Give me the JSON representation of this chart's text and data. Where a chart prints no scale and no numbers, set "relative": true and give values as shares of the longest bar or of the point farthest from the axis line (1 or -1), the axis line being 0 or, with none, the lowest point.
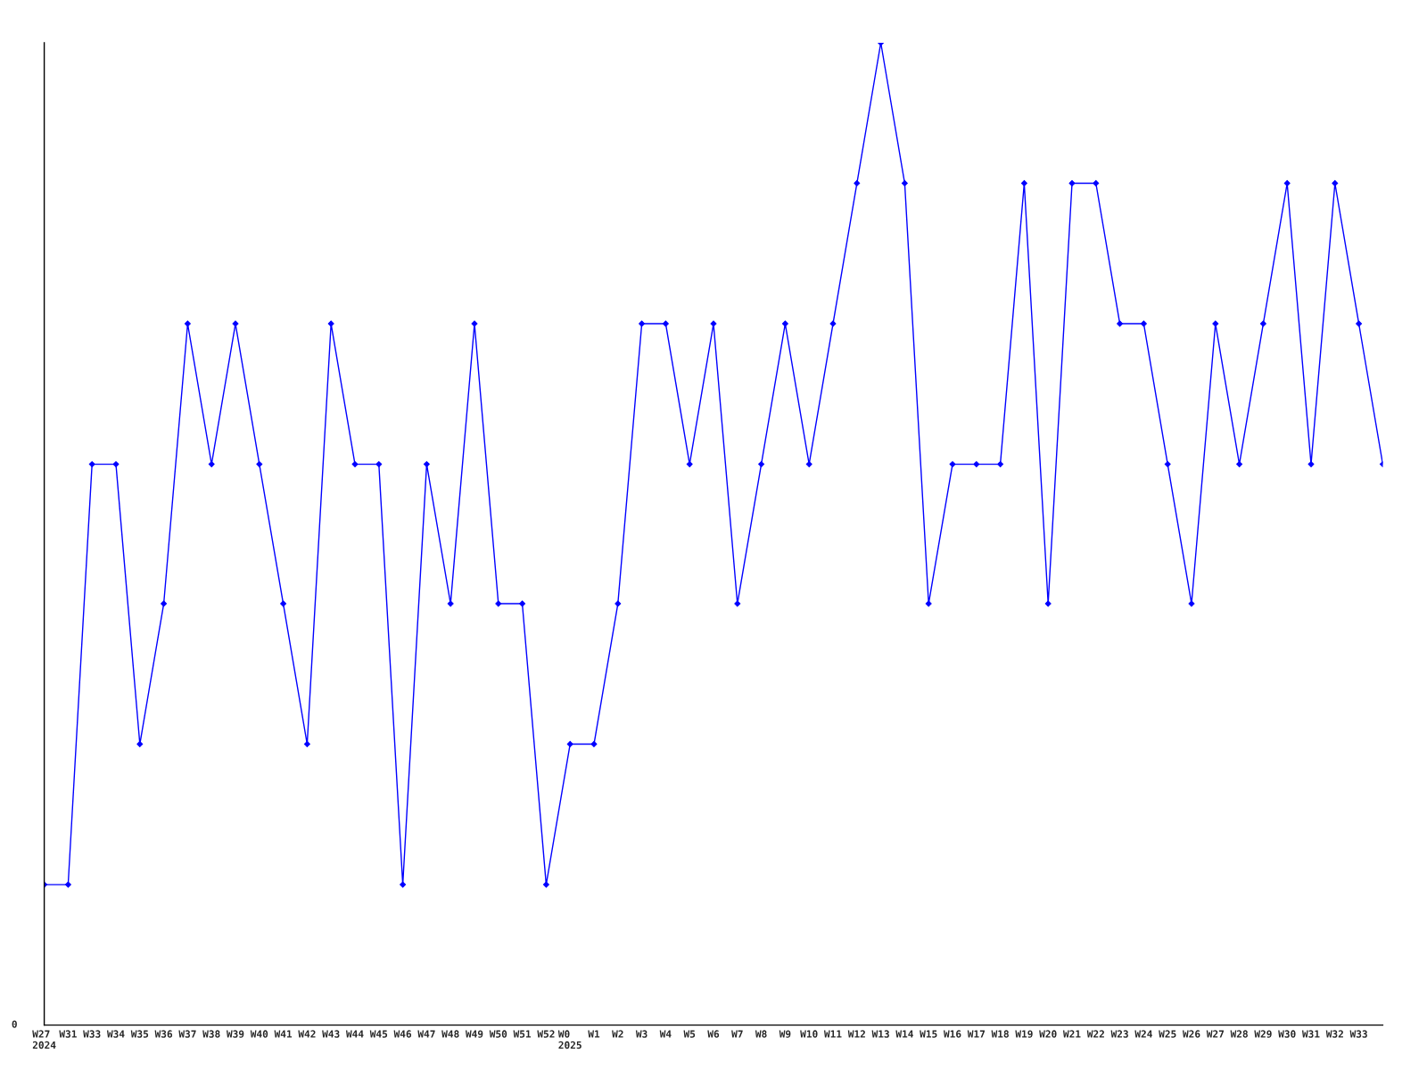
{
  "chart_data": {
    "type": "line",
    "relative": true,
    "marker": "diamond",
    "line_style": "solid",
    "annotations": [
      "0"
    ],
    "categories": [
      "W27\n2024",
      "W31",
      "W33",
      "W34",
      "W35",
      "W36",
      "W37",
      "W38",
      "W39",
      "W40",
      "W41",
      "W42",
      "W43",
      "W44",
      "W45",
      "W46",
      "W47",
      "W48",
      "W49",
      "W50",
      "W51",
      "W52",
      "W0\n2025",
      "W1",
      "W2",
      "W3",
      "W4",
      "W5",
      "W6",
      "W7",
      "W8",
      "W9",
      "W10",
      "W11",
      "W12",
      "W13",
      "W14",
      "W15",
      "W16",
      "W17",
      "W18",
      "W19",
      "W20",
      "W21",
      "W22",
      "W23",
      "W24",
      "W25",
      "W26",
      "W27",
      "W28",
      "W29",
      "W30",
      "W31",
      "W32",
      "W33",
      null
    ],
    "series": [
      {
        "color": "#0000ff",
        "values": [
          0.143,
          0.143,
          0.571,
          0.571,
          0.286,
          0.429,
          0.714,
          0.571,
          0.714,
          0.571,
          0.429,
          0.286,
          0.714,
          0.571,
          0.571,
          0.143,
          0.571,
          0.429,
          0.714,
          0.429,
          0.429,
          0.143,
          0.286,
          0.286,
          0.429,
          0.714,
          0.714,
          0.571,
          0.714,
          0.429,
          0.571,
          0.714,
          0.571,
          0.714,
          0.857,
          1,
          0.857,
          0.429,
          0.571,
          0.571,
          0.571,
          0.857,
          0.429,
          0.857,
          0.857,
          0.714,
          0.714,
          0.571,
          0.429,
          0.714,
          0.571,
          0.714,
          0.857,
          0.571,
          0.857,
          0.714,
          0.571
        ]
      }
    ]
  }
}
